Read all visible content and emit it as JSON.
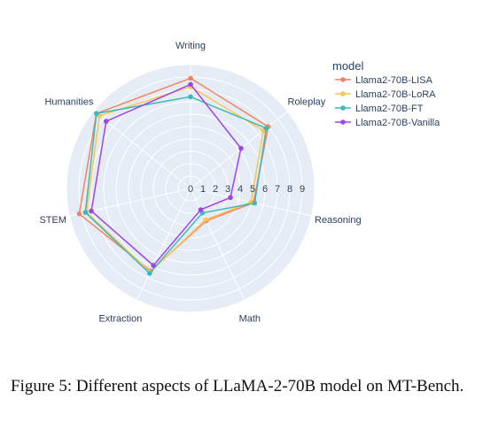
{
  "chart_data": {
    "type": "radar",
    "categories": [
      "Writing",
      "Roleplay",
      "Reasoning",
      "Math",
      "Extraction",
      "STEM",
      "Humanities"
    ],
    "radial_ticks": [
      "0",
      "1",
      "2",
      "3",
      "4",
      "5",
      "6",
      "7",
      "8",
      "9"
    ],
    "rrange": [
      0,
      10
    ],
    "legend_title": "model",
    "legend_position": "top-right",
    "grid": true,
    "series": [
      {
        "name": "Llama2-70B-LISA",
        "color": "#f4835f",
        "values": [
          8.9,
          8.0,
          5.2,
          2.9,
          7.4,
          9.2,
          9.7
        ]
      },
      {
        "name": "Llama2-70B-LoRA",
        "color": "#f9c554",
        "values": [
          8.2,
          7.5,
          5.0,
          2.8,
          7.5,
          8.6,
          9.4
        ]
      },
      {
        "name": "Llama2-70B-FT",
        "color": "#3db9b9",
        "values": [
          7.4,
          7.8,
          5.3,
          2.2,
          7.6,
          8.7,
          9.7
        ]
      },
      {
        "name": "Llama2-70B-Vanilla",
        "color": "#a044e6",
        "values": [
          8.4,
          5.2,
          3.3,
          1.9,
          6.9,
          8.2,
          8.7
        ]
      }
    ]
  },
  "caption": "Figure 5: Different aspects of LLaMA-2-70B model on MT-Bench."
}
